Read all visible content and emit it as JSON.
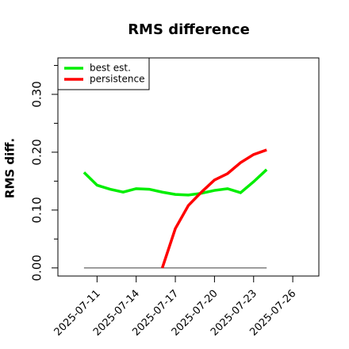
{
  "chart_data": {
    "type": "line",
    "title": "RMS difference",
    "y_label": "RMS diff.",
    "x": [
      "2025-07-10",
      "2025-07-11",
      "2025-07-12",
      "2025-07-13",
      "2025-07-14",
      "2025-07-15",
      "2025-07-16",
      "2025-07-17",
      "2025-07-18",
      "2025-07-19",
      "2025-07-20",
      "2025-07-21",
      "2025-07-22",
      "2025-07-23",
      "2025-07-24"
    ],
    "series": [
      {
        "name": "best est.",
        "color": "#00ee00",
        "values": [
          0.165,
          0.143,
          0.136,
          0.131,
          0.137,
          0.136,
          0.131,
          0.127,
          0.126,
          0.129,
          0.134,
          0.137,
          0.13,
          0.149,
          0.17
        ]
      },
      {
        "name": "persistence",
        "color": "#ff0000",
        "values": [
          null,
          null,
          null,
          null,
          null,
          null,
          0.0,
          0.068,
          0.108,
          0.131,
          0.152,
          0.163,
          0.182,
          0.196,
          0.204
        ]
      }
    ],
    "reference_line": 0,
    "xlim": [
      "2025-07-08",
      "2025-07-28"
    ],
    "xticks": [
      "2025-07-11",
      "2025-07-14",
      "2025-07-17",
      "2025-07-20",
      "2025-07-23",
      "2025-07-26"
    ],
    "ylim": [
      -0.014,
      0.363
    ],
    "yticks": [
      {
        "value": 0,
        "label": "0.00"
      },
      {
        "value": 0.1,
        "label": "0.10"
      },
      {
        "value": 0.2,
        "label": "0.20"
      },
      {
        "value": 0.3,
        "label": "0.30"
      }
    ],
    "yminor_ticks": [
      0.05,
      0.15,
      0.25,
      0.35
    ],
    "legend": "top-left"
  }
}
